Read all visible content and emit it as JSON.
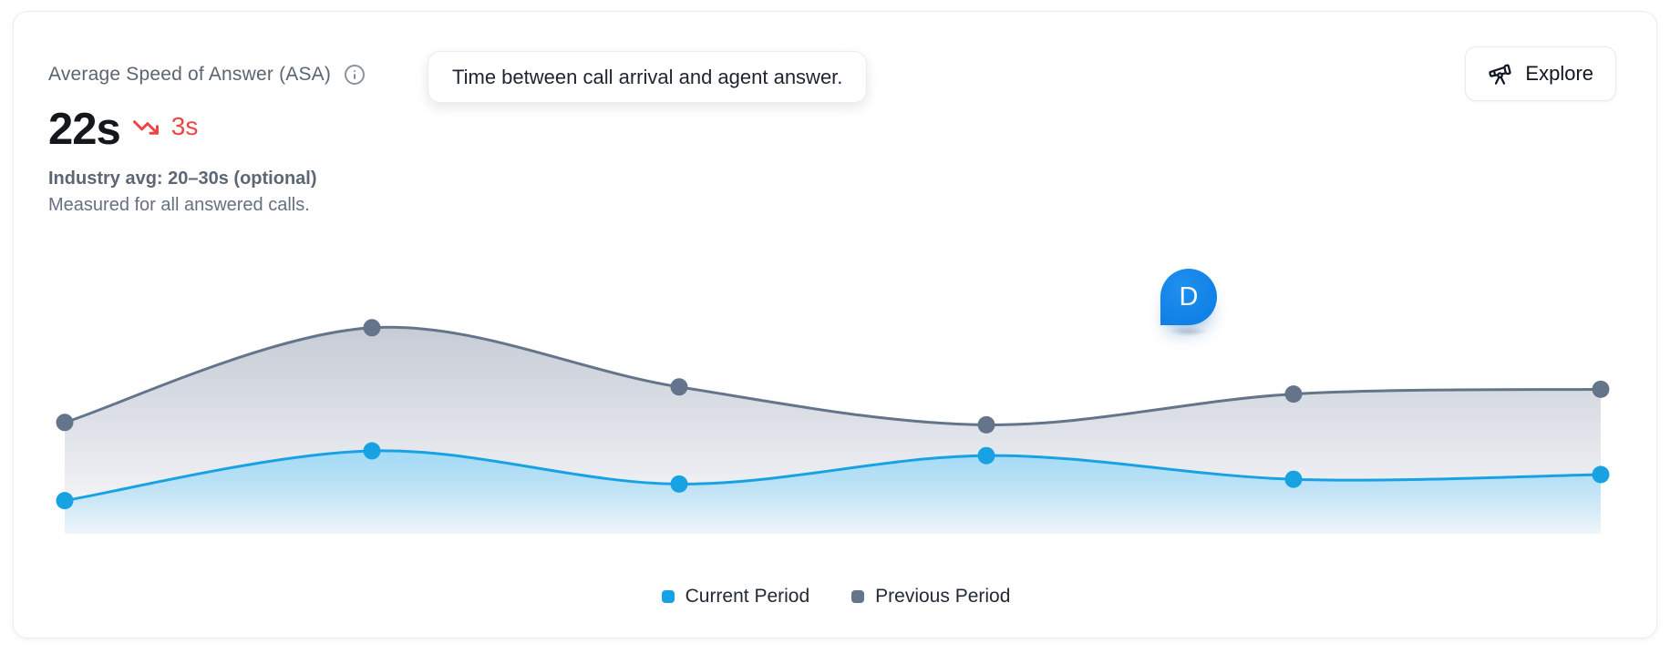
{
  "card": {
    "title": "Average Speed of Answer (ASA)",
    "tooltip": "Time between call arrival and agent answer.",
    "explore_label": "Explore",
    "metric_value": "22s",
    "metric_delta": "3s",
    "delta_direction": "down",
    "industry_avg": "Industry avg: 20–30s (optional)",
    "description": "Measured for all answered calls.",
    "cursor_label": "D"
  },
  "colors": {
    "current_blue": "#18A2E3",
    "previous_slate": "#64748B",
    "delta_red": "#EF4444",
    "cursor_blue": "#1080E6",
    "title_gray": "#5B6572",
    "card_border": "#E9EDF1"
  },
  "chart_data": {
    "type": "area",
    "title": "",
    "xlabel": "",
    "ylabel": "",
    "axes_visible": false,
    "gridlines": false,
    "value_scale": "relative-height-percent (no axis tick labels shown on chart)",
    "num_points": 6,
    "series": [
      {
        "name": "Current Period",
        "color": "#18A2E3",
        "fill_top": "#9EDAF7",
        "values": [
          14,
          35,
          21,
          33,
          23,
          25
        ]
      },
      {
        "name": "Previous Period",
        "color": "#64748B",
        "fill_top": "#C3C9D4",
        "values": [
          47,
          87,
          62,
          46,
          59,
          61
        ]
      }
    ],
    "legend": {
      "position": "bottom-center",
      "entries": [
        "Current Period",
        "Previous Period"
      ]
    }
  }
}
